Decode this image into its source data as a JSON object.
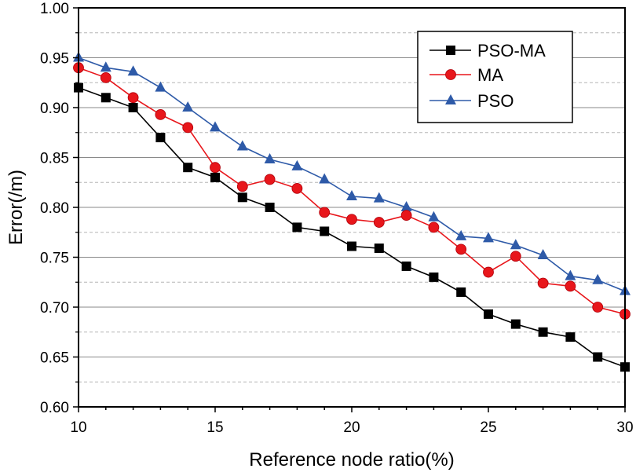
{
  "chart_data": {
    "type": "line",
    "title": "",
    "xlabel": "Reference node ratio(%)",
    "ylabel": "Error(/m)",
    "xlim": [
      10,
      30
    ],
    "ylim": [
      0.6,
      1.0
    ],
    "x_ticks": [
      "10",
      "15",
      "20",
      "25",
      "30"
    ],
    "y_ticks": [
      "0.60",
      "0.65",
      "0.70",
      "0.75",
      "0.80",
      "0.85",
      "0.90",
      "0.95",
      "1.00"
    ],
    "grid": true,
    "legend_position": "top-right",
    "x": [
      10,
      11,
      12,
      13,
      14,
      15,
      16,
      17,
      18,
      19,
      20,
      21,
      22,
      23,
      24,
      25,
      26,
      27,
      28,
      29,
      30
    ],
    "series": [
      {
        "name": "PSO-MA",
        "color": "#000000",
        "marker": "square",
        "values": [
          0.92,
          0.91,
          0.9,
          0.87,
          0.84,
          0.83,
          0.81,
          0.8,
          0.78,
          0.776,
          0.761,
          0.759,
          0.741,
          0.73,
          0.715,
          0.693,
          0.683,
          0.675,
          0.67,
          0.65,
          0.64
        ]
      },
      {
        "name": "MA",
        "color": "#e8161b",
        "marker": "circle",
        "values": [
          0.94,
          0.93,
          0.91,
          0.893,
          0.88,
          0.84,
          0.821,
          0.828,
          0.819,
          0.795,
          0.788,
          0.785,
          0.792,
          0.78,
          0.758,
          0.735,
          0.751,
          0.724,
          0.721,
          0.7,
          0.693
        ]
      },
      {
        "name": "PSO",
        "color": "#2e5aa8",
        "marker": "triangle",
        "values": [
          0.95,
          0.94,
          0.936,
          0.92,
          0.9,
          0.88,
          0.861,
          0.848,
          0.841,
          0.828,
          0.811,
          0.809,
          0.8,
          0.79,
          0.771,
          0.769,
          0.762,
          0.752,
          0.731,
          0.727,
          0.716
        ]
      }
    ]
  }
}
